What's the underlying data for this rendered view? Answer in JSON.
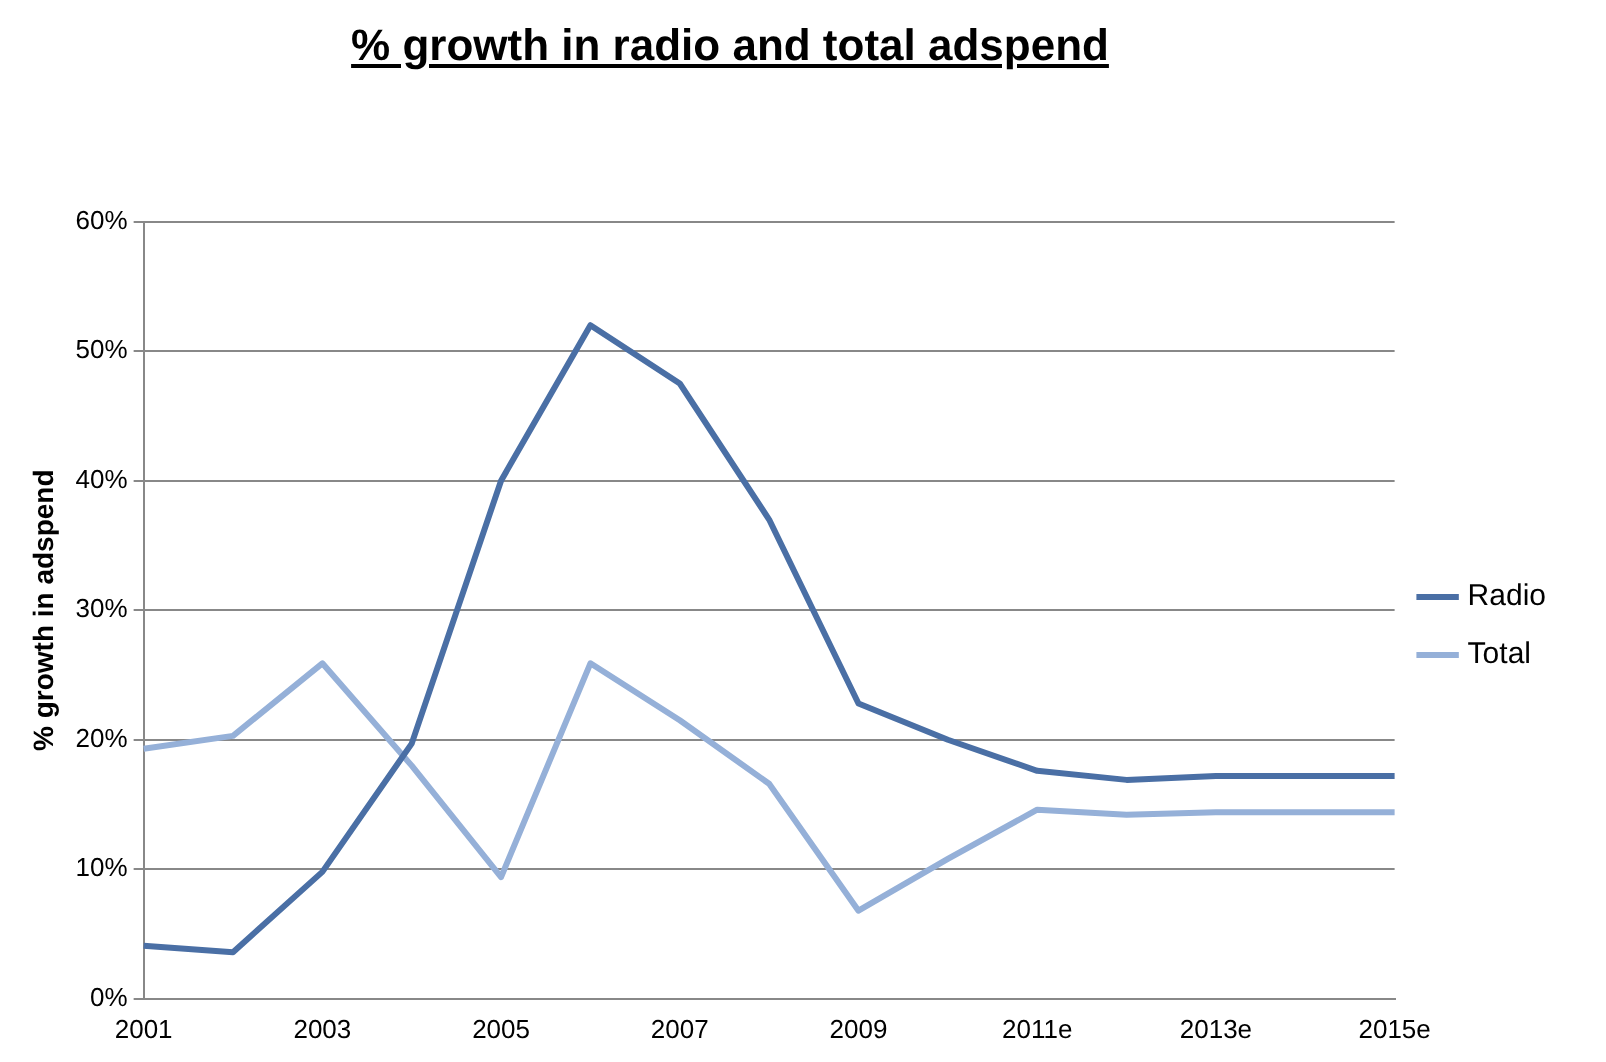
{
  "chart_data": {
    "type": "line",
    "title": "% growth in radio and total adspend",
    "ylabel": "% growth in adspend",
    "categories": [
      "2001",
      null,
      "2003",
      null,
      "2005",
      null,
      "2007",
      null,
      "2009",
      null,
      "2011e",
      null,
      "2013e",
      null,
      "2015e"
    ],
    "series": [
      {
        "name": "Radio",
        "color": "#4a6fa5",
        "values": [
          4.1,
          3.6,
          9.8,
          19.7,
          40,
          52,
          47.5,
          37,
          22.8,
          20,
          17.6,
          16.9,
          17.2,
          17.2,
          17.2
        ]
      },
      {
        "name": "Total",
        "color": "#95b0d8",
        "values": [
          19.3,
          20.3,
          25.9,
          18,
          9.4,
          25.9,
          21.5,
          16.6,
          6.8,
          10.8,
          14.6,
          14.2,
          14.4,
          14.4,
          14.4
        ]
      }
    ],
    "ylim": [
      0,
      60
    ],
    "yticks": [
      {
        "value": 0,
        "label": "0%"
      },
      {
        "value": 10,
        "label": "10%"
      },
      {
        "value": 20,
        "label": "20%"
      },
      {
        "value": 30,
        "label": "30%"
      },
      {
        "value": 40,
        "label": "40%"
      },
      {
        "value": 50,
        "label": "50%"
      },
      {
        "value": 60,
        "label": "60%"
      }
    ],
    "grid": "y",
    "legend": "right",
    "marker": "none",
    "line_style": "solid"
  }
}
